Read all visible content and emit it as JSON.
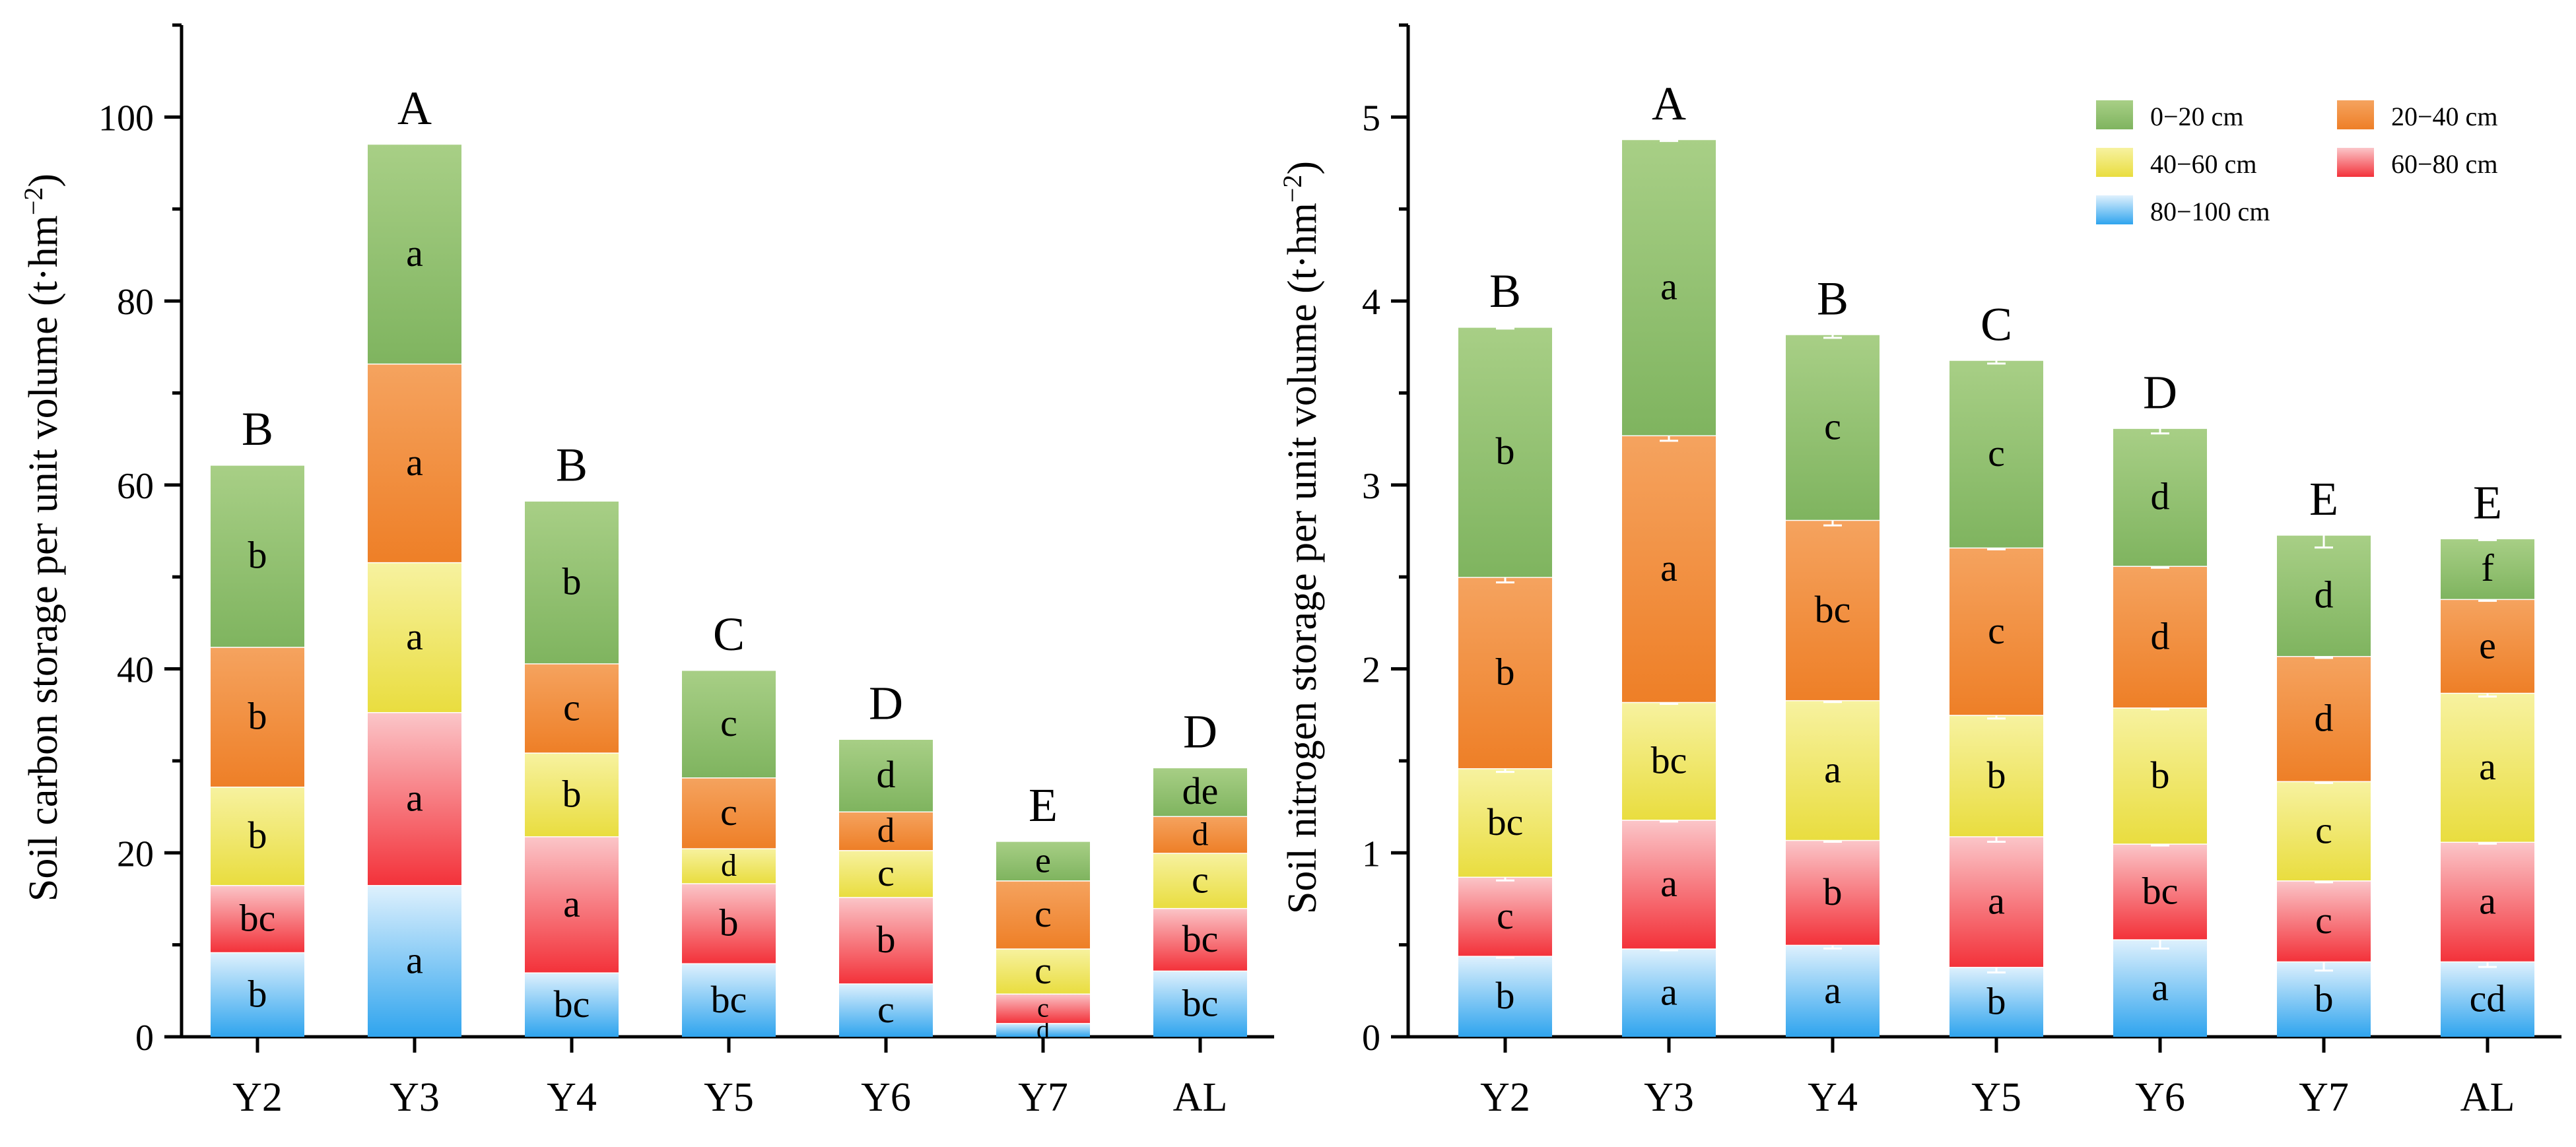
{
  "colors": {
    "l0_20": [
      "#a8cf86",
      "#7fb45f"
    ],
    "l20_40": [
      "#f5a35f",
      "#ee7f27"
    ],
    "l40_60": [
      "#f7f2a0",
      "#e9dd3f"
    ],
    "l60_80": [
      "#fbc6c9",
      "#f3323a"
    ],
    "l80_100": [
      "#dff1fd",
      "#2fa4ee"
    ]
  },
  "chart_data": [
    {
      "type": "bar",
      "stacked": true,
      "title": "",
      "xlabel": "",
      "ylabel": "Soil carbon storage per unit volume (t·hm⁻²)",
      "ylim": [
        0,
        110
      ],
      "yticks": [
        0,
        20,
        40,
        60,
        80,
        100
      ],
      "categories": [
        "Y2",
        "Y3",
        "Y4",
        "Y5",
        "Y6",
        "Y7",
        "AL"
      ],
      "series": [
        {
          "name": "80–100 cm",
          "color_key": "l80_100",
          "values": [
            9.2,
            16.5,
            7.0,
            8.0,
            5.8,
            1.5,
            7.2
          ],
          "letters": [
            "b",
            "a",
            "bc",
            "bc",
            "c",
            "d",
            "bc"
          ]
        },
        {
          "name": "60–80 cm",
          "color_key": "l60_80",
          "values": [
            7.3,
            18.8,
            14.8,
            8.7,
            9.4,
            3.2,
            6.8
          ],
          "letters": [
            "bc",
            "a",
            "a",
            "b",
            "b",
            "c",
            "bc"
          ]
        },
        {
          "name": "40–60 cm",
          "color_key": "l40_60",
          "values": [
            10.7,
            16.3,
            9.1,
            3.8,
            5.1,
            4.9,
            6.0
          ],
          "letters": [
            "b",
            "a",
            "b",
            "d",
            "c",
            "c",
            "c"
          ]
        },
        {
          "name": "20–40 cm",
          "color_key": "l20_40",
          "values": [
            15.2,
            21.6,
            9.7,
            7.7,
            4.2,
            7.4,
            4.0
          ],
          "letters": [
            "b",
            "a",
            "c",
            "c",
            "d",
            "c",
            "d"
          ]
        },
        {
          "name": "0–20 cm",
          "color_key": "l0_20",
          "values": [
            19.8,
            23.9,
            17.7,
            11.7,
            7.9,
            4.3,
            5.3
          ],
          "letters": [
            "b",
            "a",
            "b",
            "c",
            "d",
            "e",
            "de"
          ]
        }
      ],
      "totals": [
        62.2,
        97.1,
        58.3,
        39.9,
        32.4,
        21.3,
        29.3
      ],
      "total_letters": [
        "B",
        "A",
        "B",
        "C",
        "D",
        "E",
        "D"
      ],
      "error_bars": false
    },
    {
      "type": "bar",
      "stacked": true,
      "title": "",
      "xlabel": "",
      "ylabel": "Soil nitrogen storage per unit volume (t·hm⁻²)",
      "ylim": [
        0,
        5.5
      ],
      "yticks": [
        0,
        1,
        2,
        3,
        4,
        5
      ],
      "categories": [
        "Y2",
        "Y3",
        "Y4",
        "Y5",
        "Y6",
        "Y7",
        "AL"
      ],
      "series": [
        {
          "name": "80–100 cm",
          "color_key": "l80_100",
          "values": [
            0.44,
            0.48,
            0.5,
            0.38,
            0.53,
            0.41,
            0.41
          ],
          "errors": [
            0.01,
            0.01,
            0.02,
            0.03,
            0.05,
            0.05,
            0.03
          ],
          "letters": [
            "b",
            "a",
            "a",
            "b",
            "a",
            "b",
            "cd"
          ]
        },
        {
          "name": "60–80 cm",
          "color_key": "l60_80",
          "values": [
            0.43,
            0.7,
            0.57,
            0.71,
            0.52,
            0.44,
            0.65
          ],
          "errors": [
            0.02,
            0.01,
            0.01,
            0.03,
            0.01,
            0.01,
            0.01
          ],
          "letters": [
            "c",
            "a",
            "b",
            "a",
            "bc",
            "c",
            "a"
          ]
        },
        {
          "name": "40–60 cm",
          "color_key": "l40_60",
          "values": [
            0.59,
            0.64,
            0.76,
            0.66,
            0.74,
            0.54,
            0.81
          ],
          "errors": [
            0.02,
            0.01,
            0.01,
            0.02,
            0.01,
            0.01,
            0.02
          ],
          "letters": [
            "bc",
            "bc",
            "a",
            "b",
            "b",
            "c",
            "a"
          ]
        },
        {
          "name": "20–40 cm",
          "color_key": "l20_40",
          "values": [
            1.04,
            1.45,
            0.98,
            0.91,
            0.77,
            0.68,
            0.51
          ],
          "errors": [
            0.03,
            0.03,
            0.03,
            0.01,
            0.01,
            0.01,
            0.01
          ],
          "letters": [
            "b",
            "a",
            "bc",
            "c",
            "d",
            "d",
            "e"
          ]
        },
        {
          "name": "0–20 cm",
          "color_key": "l0_20",
          "values": [
            1.36,
            1.61,
            1.01,
            1.02,
            0.75,
            0.66,
            0.33
          ],
          "errors": [
            0.01,
            0.01,
            0.02,
            0.02,
            0.03,
            0.07,
            0.01
          ],
          "letters": [
            "b",
            "a",
            "c",
            "c",
            "d",
            "d",
            "f"
          ]
        }
      ],
      "totals": [
        3.86,
        4.88,
        3.82,
        3.68,
        3.31,
        2.73,
        2.71
      ],
      "total_letters": [
        "B",
        "A",
        "B",
        "C",
        "D",
        "E",
        "E"
      ],
      "error_bars": true,
      "legend": {
        "position": "top-right",
        "entries": [
          {
            "label": "0−20 cm",
            "color_key": "l0_20"
          },
          {
            "label": "20−40 cm",
            "color_key": "l20_40"
          },
          {
            "label": "40−60 cm",
            "color_key": "l40_60"
          },
          {
            "label": "60−80 cm",
            "color_key": "l60_80"
          },
          {
            "label": "80−100 cm",
            "color_key": "l80_100"
          }
        ]
      }
    }
  ]
}
